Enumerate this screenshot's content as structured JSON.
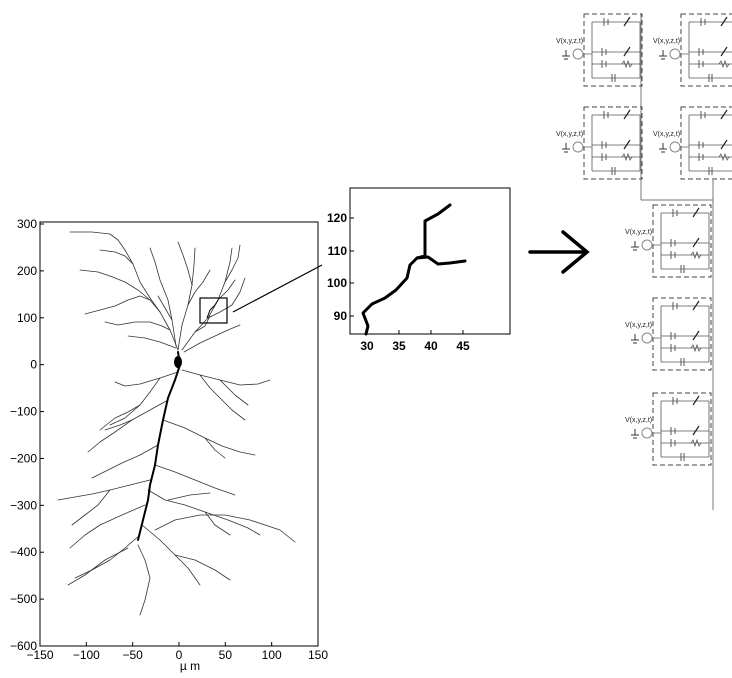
{
  "neuron_plot": {
    "x_ticks": [
      "−150",
      "−100",
      "−50",
      "0",
      "50",
      "100",
      "150"
    ],
    "y_ticks": [
      "300",
      "200",
      "100",
      "0",
      "−100",
      "−200",
      "−300",
      "−400",
      "−500",
      "−600"
    ],
    "x_unit": "µ m"
  },
  "zoom_plot": {
    "x_ticks": [
      "30",
      "35",
      "40",
      "45"
    ],
    "y_ticks": [
      "120",
      "110",
      "100",
      "90"
    ]
  },
  "circuit": {
    "node_label": "V(x,y,z,t)",
    "compartment_count": 7
  }
}
